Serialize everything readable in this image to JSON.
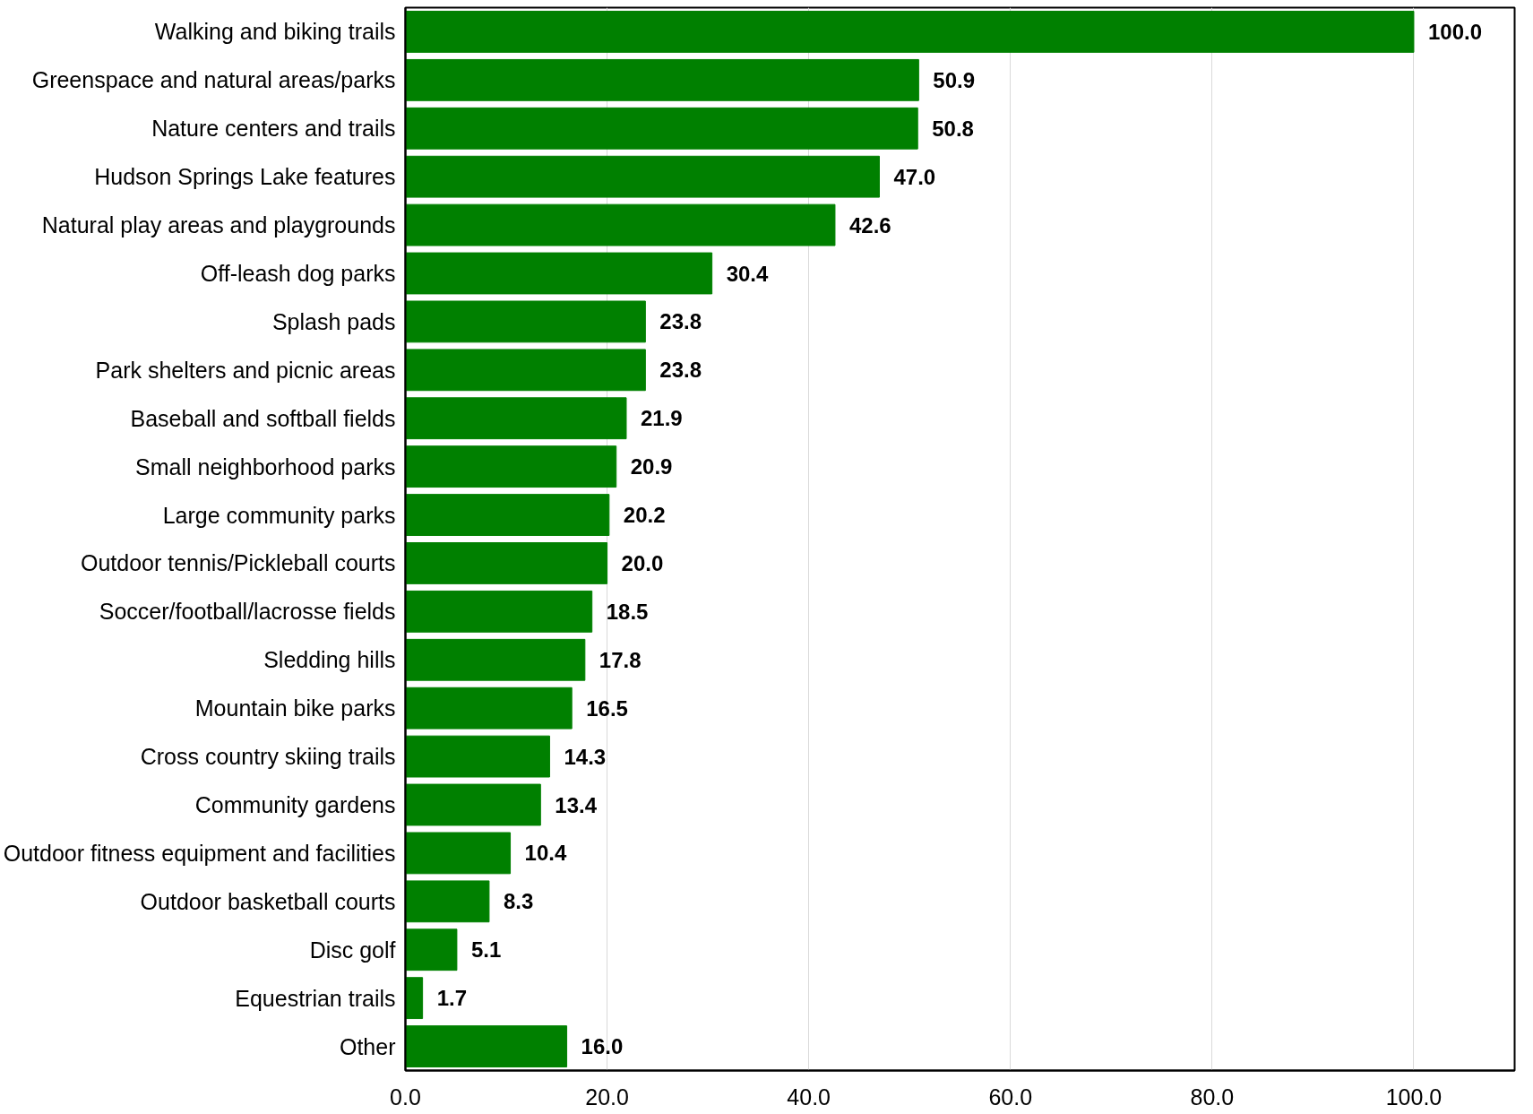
{
  "chart_data": {
    "type": "bar",
    "orientation": "horizontal",
    "categories": [
      "Walking and biking trails",
      "Greenspace and natural areas/parks",
      "Nature centers and trails",
      "Hudson Springs Lake features",
      "Natural play areas and playgrounds",
      "Off-leash dog parks",
      "Splash pads",
      "Park shelters and picnic areas",
      "Baseball and softball fields",
      "Small neighborhood parks",
      "Large community parks",
      "Outdoor tennis/Pickleball courts",
      "Soccer/football/lacrosse fields",
      "Sledding hills",
      "Mountain bike parks",
      "Cross country skiing trails",
      "Community gardens",
      "Outdoor fitness equipment and facilities",
      "Outdoor basketball courts",
      "Disc golf",
      "Equestrian trails",
      "Other"
    ],
    "values": [
      100.0,
      50.9,
      50.8,
      47.0,
      42.6,
      30.4,
      23.8,
      23.8,
      21.9,
      20.9,
      20.2,
      20.0,
      18.5,
      17.8,
      16.5,
      14.3,
      13.4,
      10.4,
      8.3,
      5.1,
      1.7,
      16.0
    ],
    "color": "#008000",
    "xlim": [
      0,
      110
    ],
    "xticks": [
      {
        "value": 0,
        "label": "0.0"
      },
      {
        "value": 20,
        "label": "20.0"
      },
      {
        "value": 40,
        "label": "40.0"
      },
      {
        "value": 60,
        "label": "60.0"
      },
      {
        "value": 80,
        "label": "80.0"
      },
      {
        "value": 100,
        "label": "100.0"
      }
    ],
    "value_labels": [
      "100.0",
      "50.9",
      "50.8",
      "47.0",
      "42.6",
      "30.4",
      "23.8",
      "23.8",
      "21.9",
      "20.9",
      "20.2",
      "20.0",
      "18.5",
      "17.8",
      "16.5",
      "14.3",
      "13.4",
      "10.4",
      "8.3",
      "5.1",
      "1.7",
      "16.0"
    ],
    "grid": "x"
  }
}
